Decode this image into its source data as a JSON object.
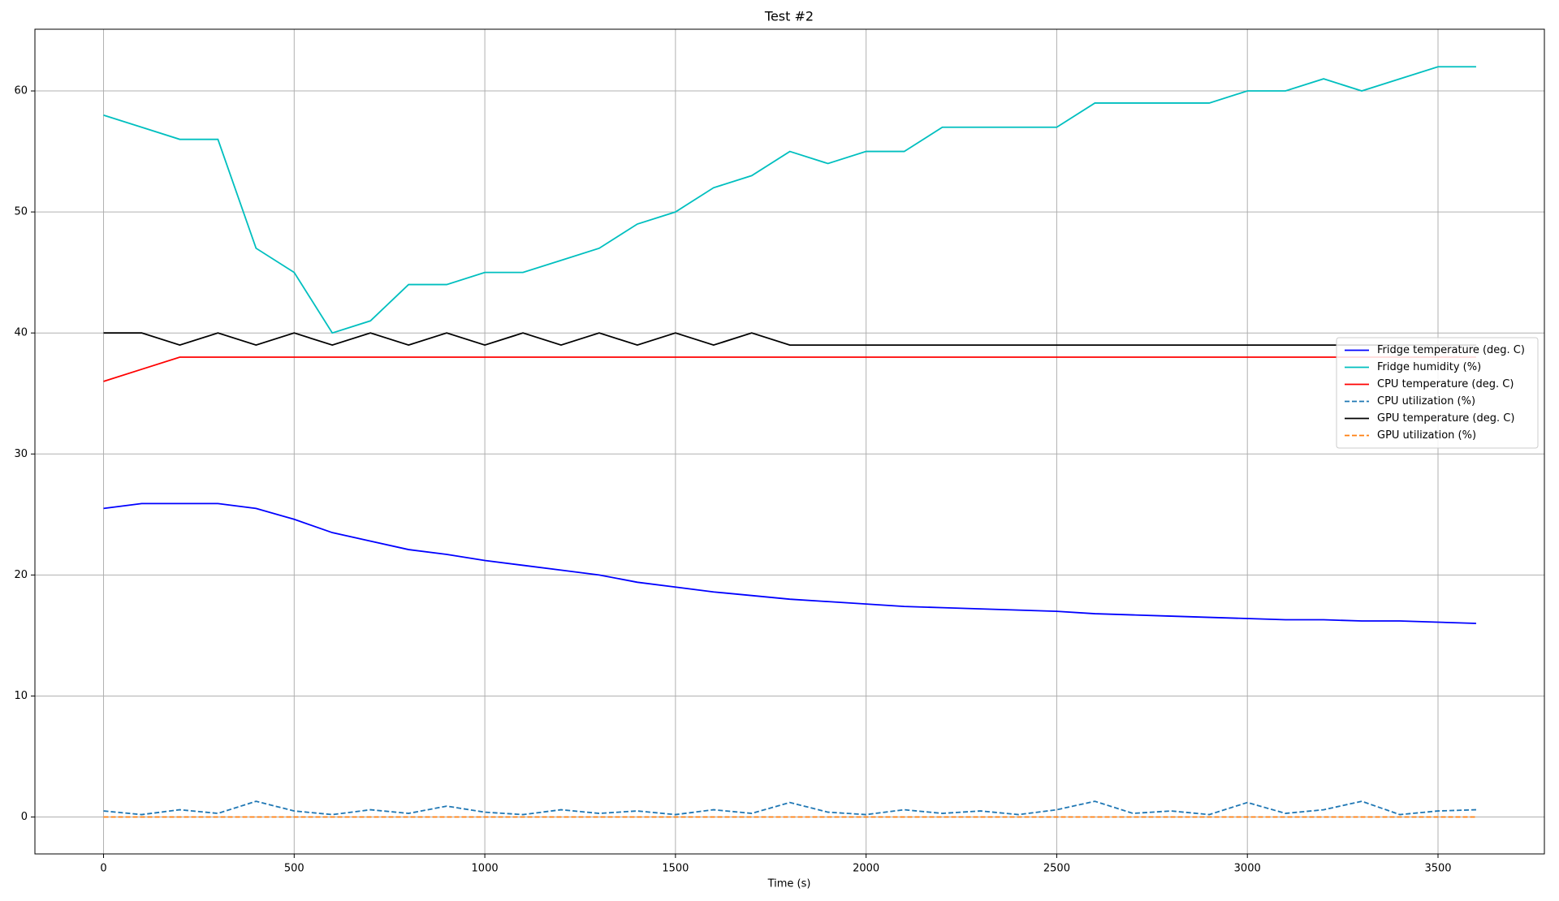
{
  "chart_data": {
    "type": "line",
    "title": "Test #2",
    "x_label": "Time (s)",
    "x": [
      0,
      100,
      200,
      300,
      400,
      500,
      600,
      700,
      800,
      900,
      1000,
      1100,
      1200,
      1300,
      1400,
      1500,
      1600,
      1700,
      1800,
      1900,
      2000,
      2100,
      2200,
      2300,
      2400,
      2500,
      2600,
      2700,
      2800,
      2900,
      3000,
      3100,
      3200,
      3300,
      3400,
      3500,
      3600
    ],
    "series": [
      {
        "name": "Fridge temperature (deg. C)",
        "color": "#0000ff",
        "linestyle": "solid",
        "values": [
          25.5,
          25.9,
          25.9,
          25.9,
          25.5,
          24.6,
          23.5,
          22.8,
          22.1,
          21.7,
          21.2,
          20.8,
          20.4,
          20.0,
          19.4,
          19.0,
          18.6,
          18.3,
          18.0,
          17.8,
          17.6,
          17.4,
          17.3,
          17.2,
          17.1,
          17.0,
          16.8,
          16.7,
          16.6,
          16.5,
          16.4,
          16.3,
          16.3,
          16.2,
          16.2,
          16.1,
          16.0
        ]
      },
      {
        "name": "Fridge humidity (%)",
        "color": "#00bfbf",
        "linestyle": "solid",
        "values": [
          58,
          57,
          56,
          56,
          47,
          45,
          40,
          41,
          44,
          44,
          45,
          45,
          46,
          47,
          49,
          50,
          52,
          53,
          55,
          54,
          55,
          55,
          57,
          57,
          57,
          57,
          59,
          59,
          59,
          59,
          60,
          60,
          61,
          60,
          61,
          62,
          62
        ]
      },
      {
        "name": "CPU temperature (deg. C)",
        "color": "#ff0000",
        "linestyle": "solid",
        "values": [
          36,
          37,
          38,
          38,
          38,
          38,
          38,
          38,
          38,
          38,
          38,
          38,
          38,
          38,
          38,
          38,
          38,
          38,
          38,
          38,
          38,
          38,
          38,
          38,
          38,
          38,
          38,
          38,
          38,
          38,
          38,
          38,
          38,
          38,
          38,
          38,
          38
        ]
      },
      {
        "name": "CPU utilization (%)",
        "color": "#1f77b4",
        "linestyle": "dashed",
        "values": [
          0.5,
          0.2,
          0.6,
          0.3,
          1.3,
          0.5,
          0.2,
          0.6,
          0.3,
          0.9,
          0.4,
          0.2,
          0.6,
          0.3,
          0.5,
          0.2,
          0.6,
          0.3,
          1.2,
          0.4,
          0.2,
          0.6,
          0.3,
          0.5,
          0.2,
          0.6,
          1.3,
          0.3,
          0.5,
          0.2,
          1.2,
          0.3,
          0.6,
          1.3,
          0.2,
          0.5,
          0.6
        ]
      },
      {
        "name": "GPU temperature (deg. C)",
        "color": "#000000",
        "linestyle": "solid",
        "values": [
          40,
          40,
          39,
          40,
          39,
          40,
          39,
          40,
          39,
          40,
          39,
          40,
          39,
          40,
          39,
          40,
          39,
          40,
          39,
          39,
          39,
          39,
          39,
          39,
          39,
          39,
          39,
          39,
          39,
          39,
          39,
          39,
          39,
          39,
          39,
          39,
          39
        ]
      },
      {
        "name": "GPU utilization (%)",
        "color": "#ff7f0e",
        "linestyle": "dashed",
        "values": [
          0,
          0,
          0,
          0,
          0,
          0,
          0,
          0,
          0,
          0,
          0,
          0,
          0,
          0,
          0,
          0,
          0,
          0,
          0,
          0,
          0,
          0,
          0,
          0,
          0,
          0,
          0,
          0,
          0,
          0,
          0,
          0,
          0,
          0,
          0,
          0,
          0
        ]
      }
    ],
    "xlim": [
      -180,
      3779
    ],
    "xticks": [
      0,
      500,
      1000,
      1500,
      2000,
      2500,
      3000,
      3500
    ],
    "ylim": [
      -3.05,
      65.1
    ],
    "yticks": [
      0,
      10,
      20,
      30,
      40,
      50,
      60
    ],
    "grid": true,
    "legend": "center right"
  }
}
